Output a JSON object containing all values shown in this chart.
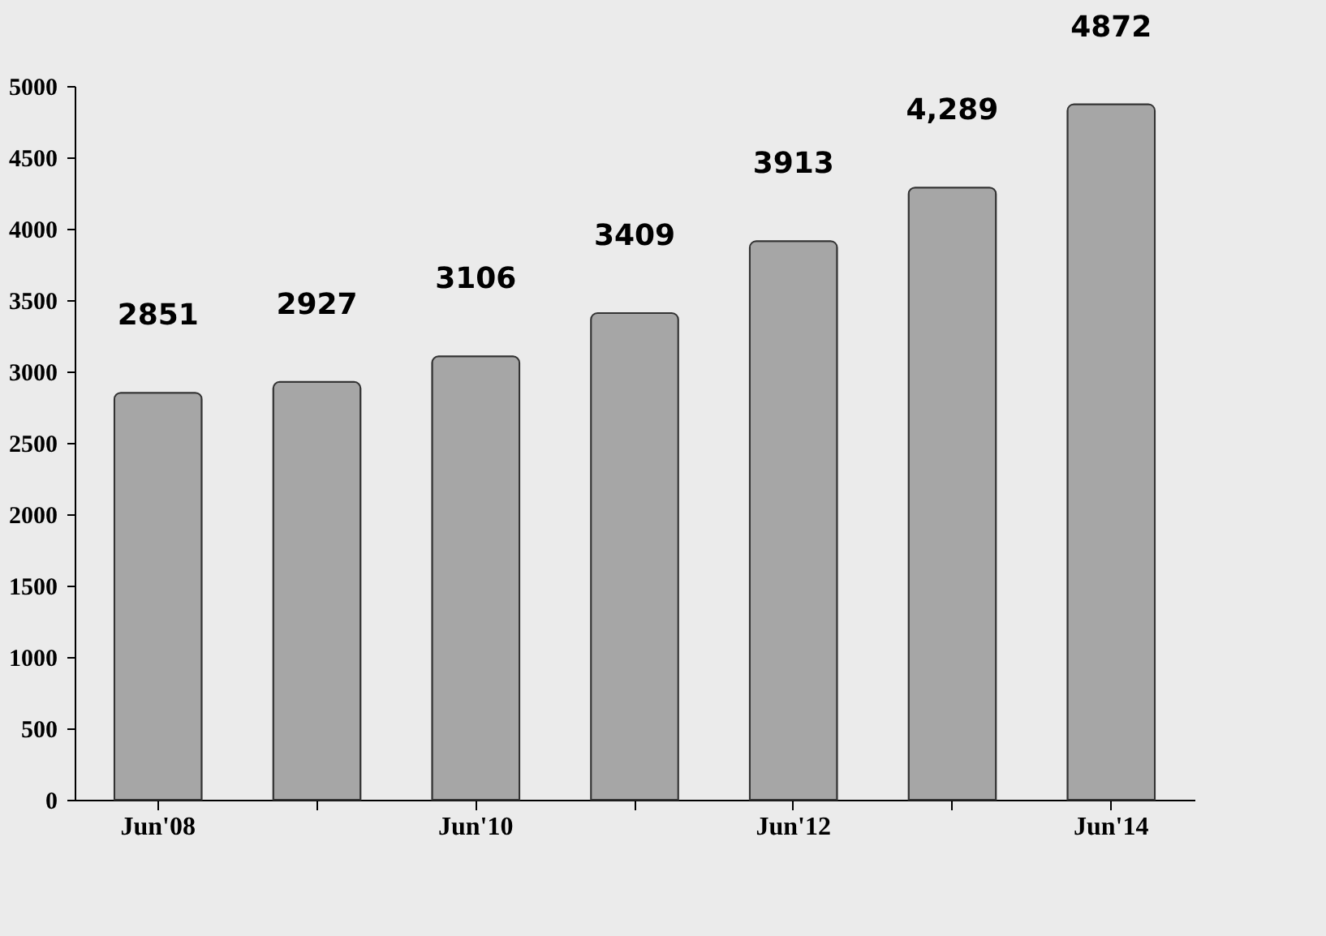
{
  "chart_data": {
    "type": "bar",
    "categories": [
      "Jun'08",
      null,
      "Jun'10",
      null,
      "Jun'12",
      null,
      "Jun'14"
    ],
    "values": [
      2851,
      2927,
      3106,
      3409,
      3913,
      4289,
      4872
    ],
    "value_labels": [
      "2851",
      "2927",
      "3106",
      "3409",
      "3913",
      "4,289",
      "4872"
    ],
    "color": "#a6a6a6",
    "ylim": [
      0,
      5000
    ],
    "yticks": [
      0,
      500,
      1000,
      1500,
      2000,
      2500,
      3000,
      3500,
      4000,
      4500,
      5000
    ],
    "grid": false
  }
}
